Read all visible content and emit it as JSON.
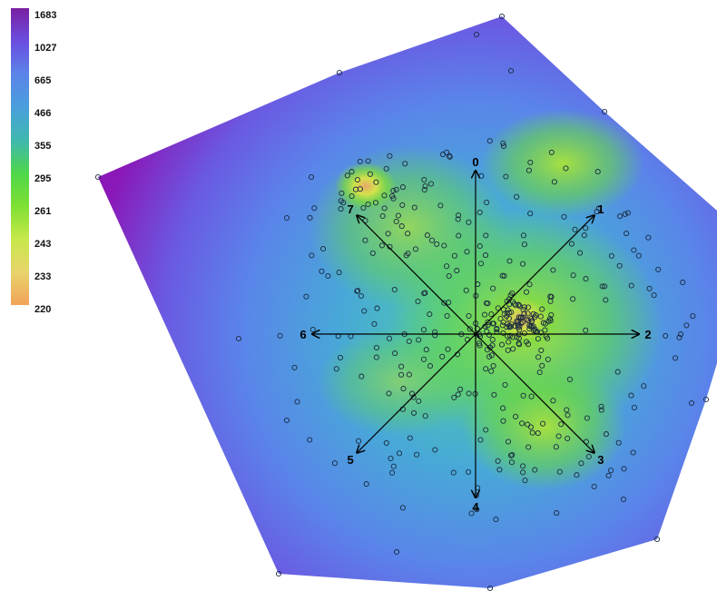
{
  "chart_data": {
    "type": "heatmap",
    "title": "",
    "colorbar": {
      "ticks": [
        "1683",
        "1027",
        "665",
        "466",
        "355",
        "295",
        "261",
        "243",
        "233",
        "220"
      ],
      "colors": [
        "#7a1fa2",
        "#6a4ee0",
        "#5b84e8",
        "#4a9edc",
        "#3fb8b0",
        "#4fd64a",
        "#7ee033",
        "#c7e84a",
        "#e8d46a",
        "#f2a25a"
      ]
    },
    "axes": [
      {
        "label": "0",
        "angle": 0
      },
      {
        "label": "1",
        "angle": 45
      },
      {
        "label": "2",
        "angle": 90
      },
      {
        "label": "3",
        "angle": 135
      },
      {
        "label": "4",
        "angle": 180
      },
      {
        "label": "5",
        "angle": 225
      },
      {
        "label": "6",
        "angle": 270
      },
      {
        "label": "7",
        "angle": 315
      }
    ],
    "hull_colors": [
      "#8a18b8",
      "#5a78e6",
      "#46b4c4",
      "#5a8ef0"
    ],
    "hotspot_colors": [
      "#c9e83e",
      "#e7a86a",
      "#7edb3c"
    ]
  }
}
